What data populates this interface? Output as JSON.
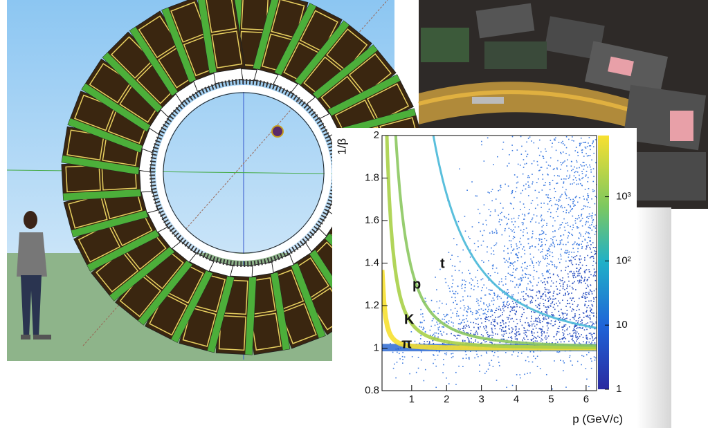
{
  "chart_data": {
    "type": "histogram2d",
    "x_label": "p (GeV/c)",
    "y_label": "1/β",
    "xlim": [
      0.15,
      6.3
    ],
    "ylim": [
      0.8,
      2
    ],
    "xticks": [
      1,
      2,
      3,
      4,
      5,
      6
    ],
    "yticks": [
      0.8,
      1,
      1.2,
      1.4,
      1.6,
      1.8,
      2
    ],
    "zlim": [
      1,
      9000
    ],
    "z_log": true,
    "zticks": [
      1,
      10,
      {
        "value": 100,
        "label": "10²"
      },
      {
        "value": 1000,
        "label": "10³"
      }
    ],
    "annotations": [
      "π",
      "K",
      "p",
      "t"
    ]
  }
}
